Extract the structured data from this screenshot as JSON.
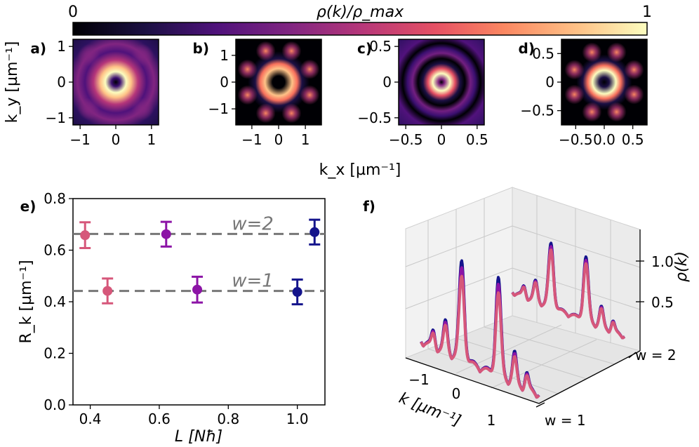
{
  "colors": {
    "pink": "#d6577a",
    "purple": "#8c14a6",
    "navy": "#14148c",
    "dash": "#777777"
  },
  "colorbar": {
    "label": "ρ(k)/ρ_max",
    "min_label": "0",
    "max_label": "1",
    "colormap": "magma"
  },
  "labels": {
    "ky": "k_y [µm⁻¹]",
    "kx": "k_x [µm⁻¹]"
  },
  "chart_data": [
    {
      "type": "heatmap",
      "panel": "a)",
      "pattern": "single ring",
      "xticks": [
        "−1",
        "0",
        "1"
      ],
      "yticks": [
        "1",
        "0",
        "−1"
      ],
      "xrange": [
        -1.2,
        1.2
      ],
      "yrange": [
        -1.2,
        1.2
      ],
      "xtick_values": [
        -1,
        0,
        1
      ],
      "ytick_values": [
        1,
        0,
        -1
      ]
    },
    {
      "type": "heatmap",
      "panel": "b)",
      "pattern": "ring with outer lobes",
      "xticks": [
        "−1",
        "0",
        "1"
      ],
      "yticks": [
        "1",
        "0",
        "−1"
      ],
      "xrange": [
        -1.6,
        1.6
      ],
      "yrange": [
        -1.6,
        1.6
      ],
      "xtick_values": [
        -1,
        0,
        1
      ],
      "ytick_values": [
        1,
        0,
        -1
      ]
    },
    {
      "type": "heatmap",
      "panel": "c)",
      "pattern": "concentric rings",
      "xticks": [
        "−0.5",
        "0",
        "0.5"
      ],
      "yticks": [
        "0.5",
        "0",
        "−0.5"
      ],
      "xrange": [
        -0.6,
        0.6
      ],
      "yrange": [
        -0.6,
        0.6
      ],
      "xtick_values": [
        -0.5,
        0,
        0.5
      ],
      "ytick_values": [
        0.5,
        0,
        -0.5
      ]
    },
    {
      "type": "heatmap",
      "panel": "d)",
      "pattern": "ring with outer lobes",
      "xticks": [
        "−0.5",
        "0.0",
        "0.5"
      ],
      "yticks": [
        "0.5",
        "0",
        "−0.5"
      ],
      "xrange": [
        -0.75,
        0.75
      ],
      "yrange": [
        -0.75,
        0.75
      ],
      "xtick_values": [
        -0.5,
        0,
        0.5
      ],
      "ytick_values": [
        0.5,
        0,
        -0.5
      ]
    },
    {
      "type": "scatter",
      "panel": "e)",
      "xlabel": "L [Nħ]",
      "ylabel": "R_k [µm⁻¹]",
      "xlim": [
        0.35,
        1.08
      ],
      "ylim": [
        0.0,
        0.8
      ],
      "xticks": [
        0.4,
        0.6,
        0.8,
        1.0
      ],
      "yticks": [
        0.0,
        0.2,
        0.4,
        0.6,
        0.8
      ],
      "xtick_labels": [
        "0.4",
        "0.6",
        "0.8",
        "1.0"
      ],
      "ytick_labels": [
        "0.0",
        "0.2",
        "0.4",
        "0.6",
        "0.8"
      ],
      "hlines": [
        {
          "y": 0.663,
          "label": "w=2"
        },
        {
          "y": 0.442,
          "label": "w=1"
        }
      ],
      "points": [
        {
          "x": 0.385,
          "y": 0.658,
          "err": 0.05,
          "color": "#d6577a"
        },
        {
          "x": 0.45,
          "y": 0.442,
          "err": 0.048,
          "color": "#d6577a"
        },
        {
          "x": 0.62,
          "y": 0.662,
          "err": 0.048,
          "color": "#8c14a6"
        },
        {
          "x": 0.71,
          "y": 0.447,
          "err": 0.05,
          "color": "#8c14a6"
        },
        {
          "x": 1.0,
          "y": 0.438,
          "err": 0.048,
          "color": "#14148c"
        },
        {
          "x": 1.05,
          "y": 0.67,
          "err": 0.048,
          "color": "#14148c"
        }
      ]
    },
    {
      "type": "line",
      "panel": "f)",
      "projection": "3d",
      "xlabel": "k [µm⁻¹]",
      "zlabel": "ρ(k)",
      "xticks": [
        "−1",
        "0",
        "1"
      ],
      "zticks": [
        "0.5",
        "1.0"
      ],
      "yticks": [
        "w = 1",
        "w = 2"
      ],
      "series": [
        {
          "color": "#14148c",
          "w": 1,
          "peak": 1.2
        },
        {
          "color": "#8c14a6",
          "w": 1,
          "peak": 1.12
        },
        {
          "color": "#d6577a",
          "w": 1,
          "peak": 1.02
        },
        {
          "color": "#14148c",
          "w": 2,
          "peak": 0.78
        },
        {
          "color": "#8c14a6",
          "w": 2,
          "peak": 0.74
        },
        {
          "color": "#d6577a",
          "w": 2,
          "peak": 0.7
        }
      ]
    }
  ]
}
